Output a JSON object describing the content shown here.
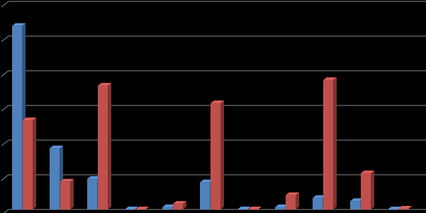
{
  "chart_data": {
    "type": "bar3d",
    "categories": [
      null,
      null,
      null,
      null,
      null,
      null,
      null,
      null,
      null,
      null,
      null
    ],
    "series": [
      {
        "color": "#4f81bd",
        "values": [
          5.29,
          1.76,
          0.88,
          0,
          0.06,
          0.78,
          0,
          0.06,
          0.33,
          0.24,
          0
        ]
      },
      {
        "color": "#c0504d",
        "values": [
          2.57,
          0.8,
          3.57,
          0,
          0.16,
          3.06,
          0,
          0.41,
          3.73,
          1.04,
          0.02
        ]
      }
    ],
    "ylim": [
      0,
      6
    ],
    "yticks": [
      0,
      1,
      2,
      3,
      4,
      5,
      6
    ],
    "grid": true
  }
}
